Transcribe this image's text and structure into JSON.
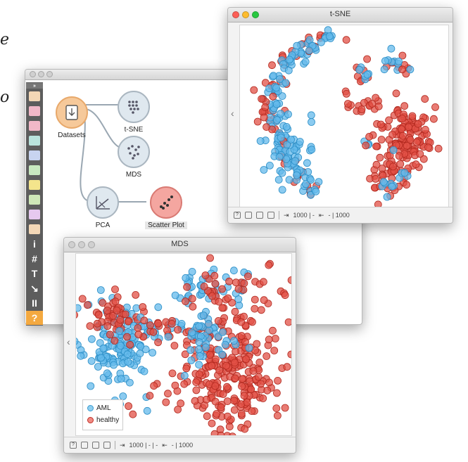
{
  "canvas_window": {
    "notes": [
      "e",
      "o"
    ],
    "widgets": [
      {
        "name": "Datasets",
        "color": "#f6c99a"
      },
      {
        "name": "t-SNE",
        "color": "#dfe8ef"
      },
      {
        "name": "MDS",
        "color": "#dfe8ef"
      },
      {
        "name": "PCA",
        "color": "#dfe8ef"
      },
      {
        "name": "Scatter Plot",
        "color": "#f4a6a0"
      }
    ]
  },
  "toolbox": {
    "items": [
      {
        "icon": "table-icon",
        "color": "#f3d7b6"
      },
      {
        "icon": "scatter-icon",
        "color": "#f2b8c8"
      },
      {
        "icon": "tree-icon",
        "color": "#f2b8c8"
      },
      {
        "icon": "grid-icon",
        "color": "#b9e3dc"
      },
      {
        "icon": "network-icon",
        "color": "#c8d4f0"
      },
      {
        "icon": "shovel-icon",
        "color": "#c8e8c0"
      },
      {
        "icon": "image-icon",
        "color": "#f4e58c"
      },
      {
        "icon": "text-a-icon",
        "color": "#cfe8b8"
      },
      {
        "icon": "bar-icon",
        "color": "#e6c9ef"
      },
      {
        "icon": "graduation-cap-icon",
        "color": "#f3d7b6"
      }
    ],
    "tools": [
      {
        "icon": "info-icon",
        "text": "i"
      },
      {
        "icon": "hash-icon",
        "text": "#"
      },
      {
        "icon": "text-tool-icon",
        "text": "T"
      },
      {
        "icon": "arrow-icon",
        "text": "↘"
      },
      {
        "icon": "pause-icon",
        "text": "II"
      },
      {
        "icon": "help-icon",
        "text": "?"
      }
    ]
  },
  "tsne_window": {
    "title": "t-SNE",
    "status": {
      "in": "1000 | -",
      "out": "- | 1000"
    }
  },
  "mds_window": {
    "title": "MDS",
    "status": {
      "in": "1000 | - | -",
      "out": "- | 1000"
    }
  },
  "legend": {
    "items": [
      {
        "label": "AML",
        "color": "#5bb4e5"
      },
      {
        "label": "healthy",
        "color": "#e0453a"
      }
    ]
  }
}
